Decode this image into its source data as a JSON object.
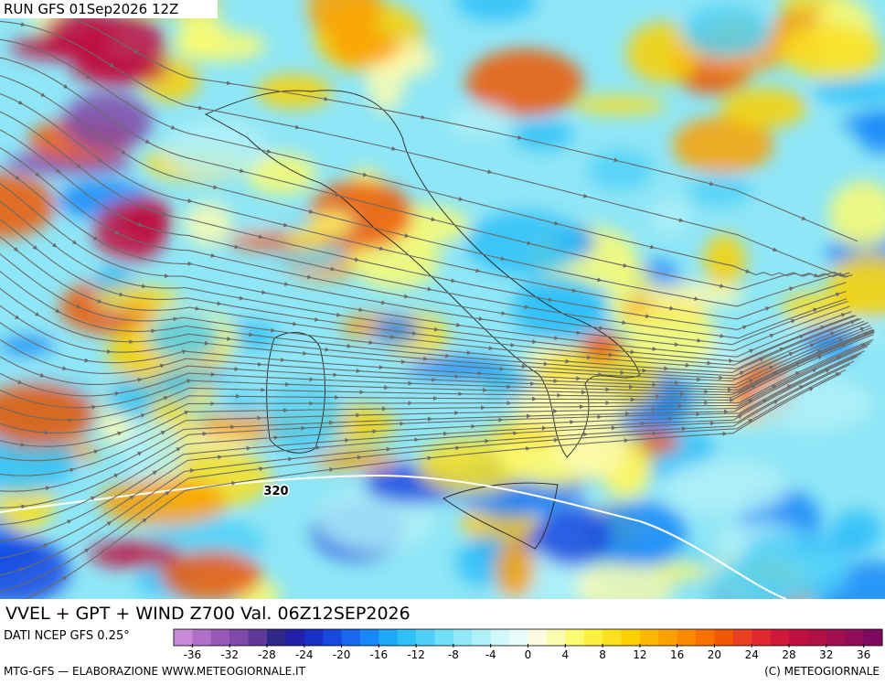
{
  "header": {
    "run": "RUN GFS 01Sep2026 12Z"
  },
  "map": {
    "contour_label": "320"
  },
  "title_bar": {
    "title": "VVEL + GPT + WIND Z700 Val. 06Z12SEP2026",
    "source": "DATI NCEP GFS 0.25°"
  },
  "colorbar": {
    "lim": [
      -38,
      38
    ],
    "ticks": [
      -36,
      -32,
      -28,
      -24,
      -20,
      -16,
      -12,
      -8,
      -4,
      0,
      4,
      8,
      12,
      16,
      20,
      24,
      28,
      32,
      36
    ],
    "colors": [
      "#c88ad8",
      "#b070c8",
      "#9858b8",
      "#8048a8",
      "#603898",
      "#302888",
      "#2020a8",
      "#1830c8",
      "#1848e0",
      "#1868f0",
      "#1888f8",
      "#20a8f8",
      "#30c0f8",
      "#50d0f8",
      "#70e0f8",
      "#90e8f8",
      "#b0f0f8",
      "#d0f8f8",
      "#e8fcfc",
      "#fcfce0",
      "#fcfcb0",
      "#fcfc70",
      "#fcf040",
      "#fce020",
      "#fcd000",
      "#fcb800",
      "#fca000",
      "#fc8800",
      "#f87000",
      "#f05800",
      "#e84020",
      "#e02830",
      "#d01838",
      "#c01040",
      "#b01048",
      "#a01050",
      "#900c58",
      "#800860"
    ]
  },
  "footer": {
    "left": "MTG-GFS — ELABORAZIONE WWW.METEOGIORNALE.IT",
    "right": "(C) METEOGIORNALE"
  }
}
